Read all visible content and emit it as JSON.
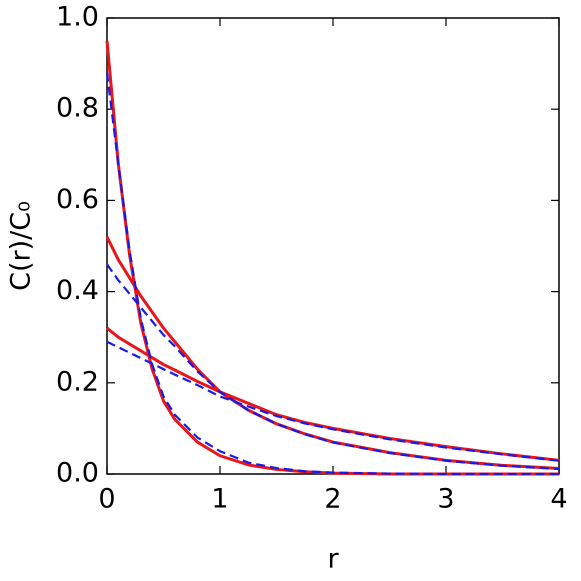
{
  "chart_data": {
    "type": "line",
    "xlabel": "r",
    "ylabel": "C(r)/C₀",
    "x": [
      0,
      0.1,
      0.2,
      0.3,
      0.4,
      0.5,
      0.6,
      0.8,
      1.0,
      1.25,
      1.5,
      1.75,
      2,
      2.5,
      3,
      3.5,
      4
    ],
    "series": [
      {
        "color": "#e8151b",
        "dashed": false,
        "values": [
          0.95,
          0.68,
          0.48,
          0.33,
          0.23,
          0.16,
          0.12,
          0.07,
          0.04,
          0.02,
          0.01,
          0.005,
          0.002,
          0,
          0,
          0,
          0
        ]
      },
      {
        "color": "#e8151b",
        "dashed": false,
        "values": [
          0.52,
          0.47,
          0.43,
          0.39,
          0.355,
          0.32,
          0.29,
          0.23,
          0.18,
          0.14,
          0.11,
          0.088,
          0.07,
          0.047,
          0.03,
          0.019,
          0.012
        ]
      },
      {
        "color": "#e8151b",
        "dashed": false,
        "values": [
          0.32,
          0.3,
          0.285,
          0.27,
          0.255,
          0.24,
          0.228,
          0.203,
          0.18,
          0.155,
          0.13,
          0.113,
          0.1,
          0.078,
          0.06,
          0.044,
          0.03
        ]
      },
      {
        "color": "#1a1ae6",
        "dashed": true,
        "values": [
          0.88,
          0.68,
          0.49,
          0.34,
          0.24,
          0.17,
          0.13,
          0.08,
          0.05,
          0.025,
          0.013,
          0.006,
          0.003,
          0.001,
          0,
          0,
          0
        ]
      },
      {
        "color": "#1a1ae6",
        "dashed": true,
        "values": [
          0.46,
          0.425,
          0.395,
          0.365,
          0.335,
          0.305,
          0.28,
          0.225,
          0.18,
          0.14,
          0.11,
          0.087,
          0.069,
          0.046,
          0.029,
          0.018,
          0.011
        ]
      },
      {
        "color": "#1a1ae6",
        "dashed": true,
        "values": [
          0.29,
          0.278,
          0.266,
          0.254,
          0.242,
          0.23,
          0.218,
          0.195,
          0.17,
          0.148,
          0.127,
          0.111,
          0.098,
          0.076,
          0.058,
          0.043,
          0.029
        ]
      }
    ],
    "xlim": [
      0,
      4
    ],
    "xticks": [
      0,
      1,
      2,
      3,
      4
    ],
    "ylim": [
      0,
      1
    ],
    "yticks": [
      {
        "value": 0,
        "label": "0.0"
      },
      0.2,
      0.4,
      0.6,
      0.8,
      {
        "value": 1,
        "label": "1.0"
      }
    ]
  }
}
